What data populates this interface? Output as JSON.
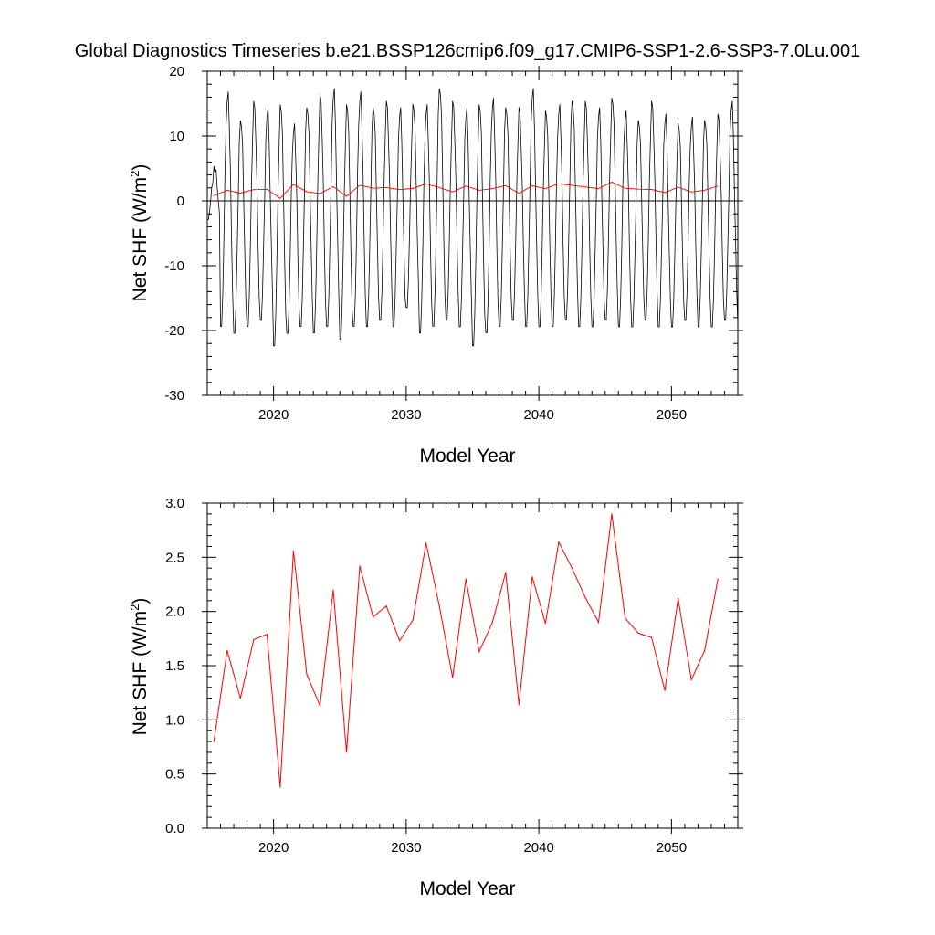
{
  "figure_title": "Global Diagnostics Timeseries b.e21.BSSP126cmip6.f09_g17.CMIP6-SSP1-2.6-SSP3-7.0Lu.001",
  "colors": {
    "monthly": "#000000",
    "annual": "#ff0000",
    "zero_line": "#000000"
  },
  "chart_data": [
    {
      "type": "line",
      "xlabel": "Model Year",
      "ylabel": "Net SHF (W/m",
      "ylabel_sup": "2",
      "ylabel_close": ")",
      "xlim": [
        2015,
        2055
      ],
      "ylim": [
        -30,
        20
      ],
      "xticks": [
        2020,
        2030,
        2040,
        2050
      ],
      "yticks": [
        -30,
        -20,
        -10,
        0,
        10,
        20
      ],
      "ytick_labels": [
        "-30",
        "-20",
        "-10",
        "0",
        "10",
        "20"
      ],
      "reference_line_y": 0,
      "monthly": {
        "start": 2015.0,
        "step": 0.0833333,
        "annual_highs": [
          5,
          17,
          13,
          15,
          14,
          15,
          12,
          15,
          16,
          17,
          15,
          17,
          15,
          15,
          14,
          15,
          15,
          18,
          15,
          14,
          15,
          16,
          15,
          14,
          17,
          14,
          15,
          16,
          15,
          14,
          16,
          14,
          13,
          15,
          13,
          12,
          13,
          13,
          13,
          15,
          13
        ],
        "annual_lows": [
          -3,
          -20,
          -21,
          -20,
          -19,
          -23,
          -21,
          -20,
          -21,
          -20,
          -22,
          -20,
          -20,
          -19,
          -20,
          -17,
          -21,
          -20,
          -19,
          -20,
          -23,
          -21,
          -20,
          -19,
          -20,
          -20,
          -20,
          -19,
          -20,
          -20,
          -19,
          -20,
          -20,
          -19,
          -20,
          -20,
          -19,
          -20,
          -20,
          -19,
          -20
        ]
      },
      "annual_series": {
        "name": "",
        "x": [
          2015.5,
          2016.5,
          2017.5,
          2018.5,
          2019.5,
          2020.5,
          2021.5,
          2022.5,
          2023.5,
          2024.5,
          2025.5,
          2026.5,
          2027.5,
          2028.5,
          2029.5,
          2030.5,
          2031.5,
          2032.5,
          2033.5,
          2034.5,
          2035.5,
          2036.5,
          2037.5,
          2038.5,
          2039.5,
          2040.5,
          2041.5,
          2042.5,
          2043.5,
          2044.5,
          2045.5,
          2046.5,
          2047.5,
          2048.5,
          2049.5,
          2050.5,
          2051.5,
          2052.5,
          2053.5
        ],
        "values": [
          0.8,
          1.64,
          1.2,
          1.74,
          1.79,
          0.38,
          2.56,
          1.42,
          1.13,
          2.2,
          0.7,
          2.42,
          1.95,
          2.05,
          1.73,
          1.92,
          2.63,
          2.05,
          1.39,
          2.3,
          1.63,
          1.9,
          2.36,
          1.14,
          2.32,
          1.89,
          2.64,
          2.4,
          2.13,
          1.9,
          2.9,
          1.94,
          1.8,
          1.76,
          1.27,
          2.12,
          1.37,
          1.64,
          2.3
        ]
      }
    },
    {
      "type": "line",
      "xlabel": "Model Year",
      "ylabel": "Net SHF (W/m",
      "ylabel_sup": "2",
      "ylabel_close": ")",
      "xlim": [
        2015,
        2055
      ],
      "ylim": [
        0,
        3
      ],
      "xticks": [
        2020,
        2030,
        2040,
        2050
      ],
      "yticks": [
        0,
        0.5,
        1,
        1.5,
        2,
        2.5,
        3
      ],
      "ytick_labels": [
        "0.0",
        "0.5",
        "1.0",
        "1.5",
        "2.0",
        "2.5",
        "3.0"
      ]
    }
  ]
}
